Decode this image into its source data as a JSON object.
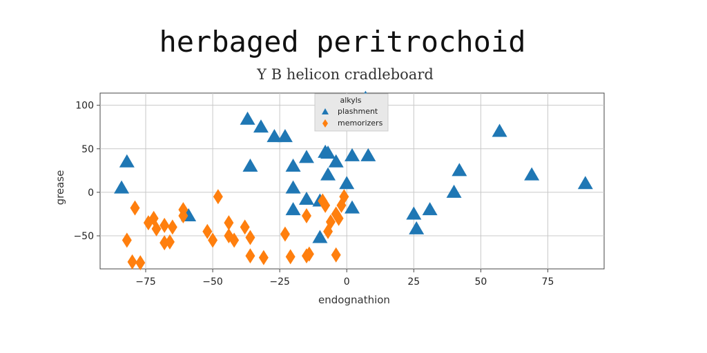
{
  "chart_data": {
    "type": "scatter",
    "title": "herbaged peritrochoid",
    "subtitle": "Y B helicon cradleboard",
    "xlabel": "endognathion",
    "ylabel": "grease",
    "xlim": [
      -92,
      96
    ],
    "ylim": [
      -88,
      114
    ],
    "xticks": [
      -75,
      -50,
      -25,
      0,
      25,
      50,
      75
    ],
    "yticks": [
      -50,
      0,
      50,
      100
    ],
    "grid": true,
    "legend": {
      "title": "alkyls",
      "position": "top-center"
    },
    "series": [
      {
        "name": "plashment",
        "marker": "triangle",
        "color": "#1f77b4",
        "points": [
          [
            7,
            108
          ],
          [
            -37,
            84
          ],
          [
            -32,
            75
          ],
          [
            -27,
            64
          ],
          [
            -23,
            64
          ],
          [
            57,
            70
          ],
          [
            -82,
            35
          ],
          [
            -84,
            5
          ],
          [
            -36,
            30
          ],
          [
            -20,
            30
          ],
          [
            -15,
            40
          ],
          [
            -8,
            46
          ],
          [
            -7,
            45
          ],
          [
            -4,
            35
          ],
          [
            2,
            42
          ],
          [
            8,
            42
          ],
          [
            -20,
            5
          ],
          [
            -7,
            20
          ],
          [
            0,
            10
          ],
          [
            42,
            25
          ],
          [
            69,
            20
          ],
          [
            89,
            10
          ],
          [
            40,
            0
          ],
          [
            -20,
            -20
          ],
          [
            -15,
            -8
          ],
          [
            -10,
            -10
          ],
          [
            2,
            -18
          ],
          [
            -59,
            -27
          ],
          [
            25,
            -25
          ],
          [
            26,
            -42
          ],
          [
            31,
            -20
          ],
          [
            -10,
            -52
          ]
        ]
      },
      {
        "name": "memorizers",
        "marker": "diamond",
        "color": "#ff7f0e",
        "points": [
          [
            -79,
            -18
          ],
          [
            -61,
            -20
          ],
          [
            -61,
            -27
          ],
          [
            -48,
            -5
          ],
          [
            -72,
            -30
          ],
          [
            -74,
            -35
          ],
          [
            -68,
            -38
          ],
          [
            -71,
            -42
          ],
          [
            -65,
            -40
          ],
          [
            -68,
            -58
          ],
          [
            -66,
            -57
          ],
          [
            -82,
            -55
          ],
          [
            -80,
            -80
          ],
          [
            -77,
            -81
          ],
          [
            -52,
            -45
          ],
          [
            -50,
            -55
          ],
          [
            -44,
            -35
          ],
          [
            -44,
            -50
          ],
          [
            -42,
            -55
          ],
          [
            -38,
            -40
          ],
          [
            -36,
            -52
          ],
          [
            -36,
            -73
          ],
          [
            -31,
            -75
          ],
          [
            -23,
            -48
          ],
          [
            -21,
            -74
          ],
          [
            -15,
            -73
          ],
          [
            -14,
            -71
          ],
          [
            -15,
            -27
          ],
          [
            -9,
            -10
          ],
          [
            -8,
            -15
          ],
          [
            -7,
            -45
          ],
          [
            -6,
            -34
          ],
          [
            -4,
            -25
          ],
          [
            -3,
            -30
          ],
          [
            -2,
            -15
          ],
          [
            -1,
            -5
          ],
          [
            -4,
            -72
          ]
        ]
      }
    ]
  }
}
